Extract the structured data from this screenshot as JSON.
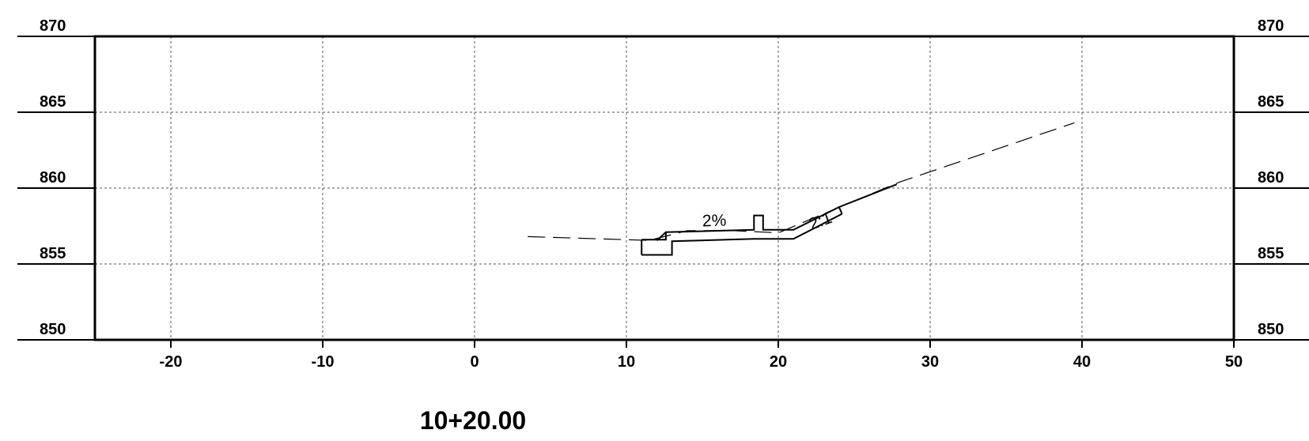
{
  "station": "10+20.00",
  "chart_data": {
    "type": "cross-section",
    "xlim": [
      -25,
      50
    ],
    "ylim": [
      850,
      870
    ],
    "x_ticks": [
      -20,
      -10,
      0,
      10,
      20,
      30,
      40,
      50
    ],
    "x_tick_labels": [
      "-20",
      "-10",
      "0",
      "10",
      "20",
      "30",
      "40",
      "50"
    ],
    "y_ticks": [
      850,
      855,
      860,
      865,
      870
    ],
    "y_tick_labels": [
      "850",
      "855",
      "860",
      "865",
      "870"
    ],
    "grid": true,
    "existing_ground": [
      [
        3.5,
        856.8
      ],
      [
        11.5,
        856.55
      ],
      [
        14,
        857.2
      ],
      [
        17,
        857.2
      ],
      [
        20,
        857.05
      ],
      [
        28,
        860.4
      ],
      [
        39.5,
        864.3
      ]
    ],
    "proposed_section": {
      "top_surface": [
        [
          11,
          856.6
        ],
        [
          12.6,
          856.6
        ],
        [
          12.6,
          857.1
        ],
        [
          18.4,
          857.25
        ],
        [
          18.4,
          858.2
        ],
        [
          19.0,
          858.2
        ],
        [
          19.0,
          857.25
        ],
        [
          21.0,
          857.25
        ],
        [
          24.0,
          858.75
        ],
        [
          27.8,
          860.25
        ]
      ],
      "bottom_surface": [
        [
          11,
          855.6
        ],
        [
          13.0,
          855.6
        ],
        [
          13.0,
          856.5
        ],
        [
          18.4,
          856.65
        ],
        [
          21.0,
          856.65
        ],
        [
          24.2,
          858.3
        ]
      ],
      "left_edge": [
        [
          11,
          856.6
        ],
        [
          11,
          855.6
        ]
      ],
      "right_edge": [
        [
          24.0,
          858.75
        ],
        [
          24.2,
          858.3
        ]
      ],
      "curb_diagonal": [
        [
          12.0,
          856.55
        ],
        [
          12.6,
          857.1
        ]
      ]
    },
    "annotations": [
      {
        "text": "2%",
        "x": 15.8,
        "y": 857.5,
        "rotate": -2
      },
      {
        "text": "2:1",
        "x": 22.9,
        "y": 857.5,
        "rotate": -20
      }
    ]
  }
}
